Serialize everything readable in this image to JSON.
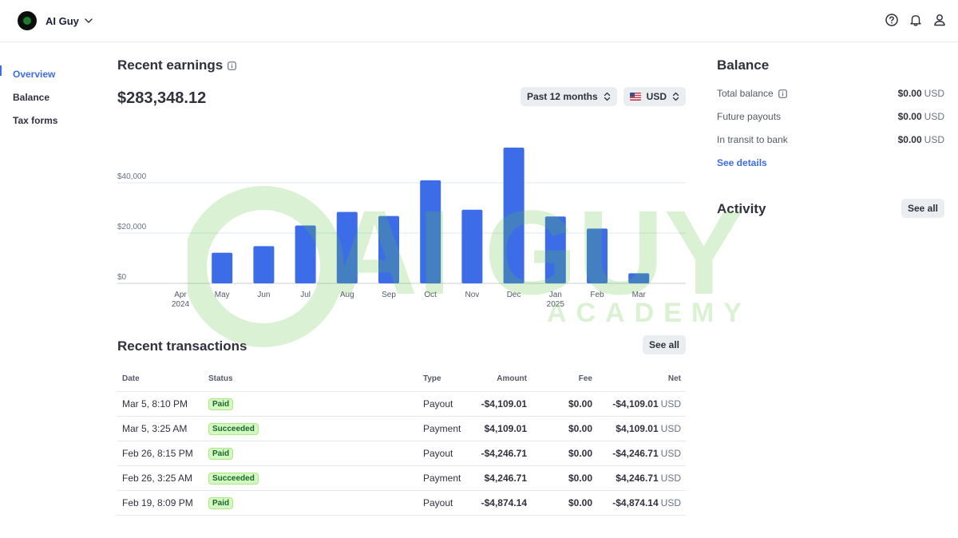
{
  "header": {
    "account_name": "AI Guy",
    "icons": [
      "help-icon",
      "bell-icon",
      "user-icon"
    ]
  },
  "nav": {
    "items": [
      {
        "label": "Overview",
        "active": true
      },
      {
        "label": "Balance",
        "active": false
      },
      {
        "label": "Tax forms",
        "active": false
      }
    ]
  },
  "earnings": {
    "title": "Recent earnings",
    "total": "$283,348.12",
    "range_label": "Past 12 months",
    "currency_label": "USD"
  },
  "chart_data": {
    "type": "bar",
    "categories": [
      "Apr",
      "May",
      "Jun",
      "Jul",
      "Aug",
      "Sep",
      "Oct",
      "Nov",
      "Dec",
      "Jan",
      "Feb",
      "Mar"
    ],
    "category_sublabels": [
      "2024",
      "",
      "",
      "",
      "",
      "",
      "",
      "",
      "",
      "2025",
      "",
      ""
    ],
    "values": [
      0,
      12200,
      14800,
      23000,
      28400,
      26800,
      41000,
      29300,
      54000,
      26600,
      21800,
      4000
    ],
    "y_ticks": [
      {
        "value": 0,
        "label": "$0"
      },
      {
        "value": 20000,
        "label": "$20,000"
      },
      {
        "value": 40000,
        "label": "$40,000"
      }
    ],
    "ylim": [
      0,
      60000
    ],
    "grid": true,
    "bar_color": "#3d6ce8"
  },
  "transactions": {
    "title": "Recent transactions",
    "see_all_label": "See all",
    "columns": {
      "date": "Date",
      "status": "Status",
      "type": "Type",
      "amount": "Amount",
      "fee": "Fee",
      "net": "Net"
    },
    "rows": [
      {
        "date": "Mar 5, 8:10 PM",
        "status": "Paid",
        "type": "Payout",
        "amount": "-$4,109.01",
        "fee": "$0.00",
        "net": "-$4,109.01",
        "currency": "USD"
      },
      {
        "date": "Mar 5, 3:25 AM",
        "status": "Succeeded",
        "type": "Payment",
        "amount": "$4,109.01",
        "fee": "$0.00",
        "net": "$4,109.01",
        "currency": "USD"
      },
      {
        "date": "Feb 26, 8:15 PM",
        "status": "Paid",
        "type": "Payout",
        "amount": "-$4,246.71",
        "fee": "$0.00",
        "net": "-$4,246.71",
        "currency": "USD"
      },
      {
        "date": "Feb 26, 3:25 AM",
        "status": "Succeeded",
        "type": "Payment",
        "amount": "$4,246.71",
        "fee": "$0.00",
        "net": "$4,246.71",
        "currency": "USD"
      },
      {
        "date": "Feb 19, 8:09 PM",
        "status": "Paid",
        "type": "Payout",
        "amount": "-$4,874.14",
        "fee": "$0.00",
        "net": "-$4,874.14",
        "currency": "USD"
      }
    ]
  },
  "balance": {
    "title": "Balance",
    "rows": [
      {
        "label": "Total balance",
        "value": "$0.00",
        "currency": "USD"
      },
      {
        "label": "Future payouts",
        "value": "$0.00",
        "currency": "USD"
      },
      {
        "label": "In transit to bank",
        "value": "$0.00",
        "currency": "USD"
      }
    ],
    "details_link": "See details"
  },
  "activity": {
    "title": "Activity",
    "see_all_label": "See all"
  },
  "watermark": {
    "brand": "AI GUY",
    "sub": "ACADEMY",
    "color": "#5cc43a"
  }
}
